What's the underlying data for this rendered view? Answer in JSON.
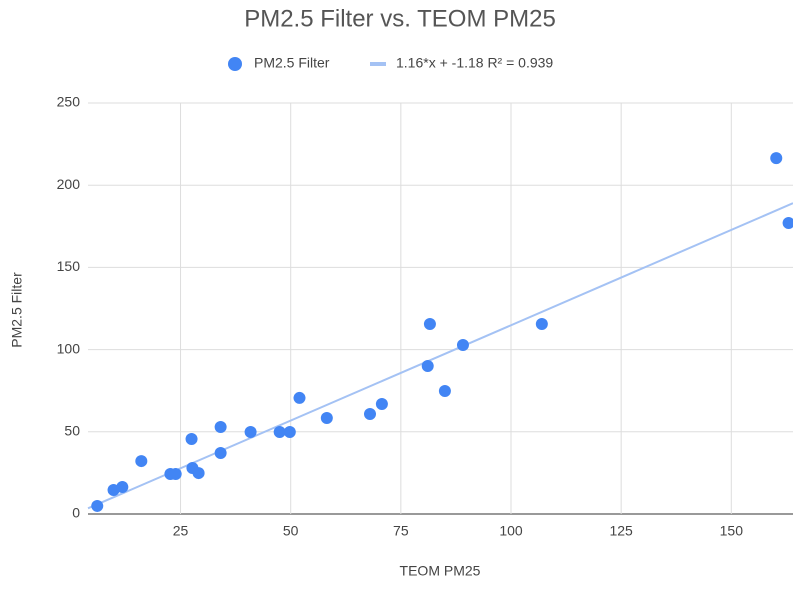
{
  "chart_data": {
    "type": "scatter",
    "title": "PM2.5 Filter vs. TEOM PM25",
    "x_label": "TEOM PM25",
    "y_label": "PM2.5 Filter",
    "series": [
      {
        "name": "PM2.5 Filter",
        "color": "#4285f4",
        "x": [
          6.1,
          9.8,
          11.8,
          16.1,
          22.7,
          23.9,
          27.5,
          27.7,
          29.1,
          34.1,
          34.1,
          40.9,
          47.5,
          49.8,
          52,
          58.2,
          68,
          70.7,
          81.1,
          81.6,
          85,
          89.1,
          107,
          160.2,
          163
        ],
        "values": [
          4.9,
          14.6,
          16.4,
          32.2,
          24.3,
          24.3,
          45.6,
          28,
          24.9,
          52.9,
          37.1,
          49.9,
          49.9,
          49.9,
          70.6,
          58.4,
          60.8,
          66.9,
          90,
          115.6,
          74.8,
          102.8,
          115.6,
          216.5,
          177
        ]
      }
    ],
    "trendline": {
      "name": "1.16*x + -1.18 R² = 0.939",
      "color": "#a4c2f4",
      "slope": 1.16,
      "intercept": -1.18
    },
    "xlim": [
      4,
      164
    ],
    "xticks": [
      25,
      50,
      75,
      100,
      125,
      150
    ],
    "ylim": [
      0,
      250
    ],
    "yticks": [
      0,
      50,
      100,
      150,
      200,
      250
    ],
    "grid": true
  }
}
